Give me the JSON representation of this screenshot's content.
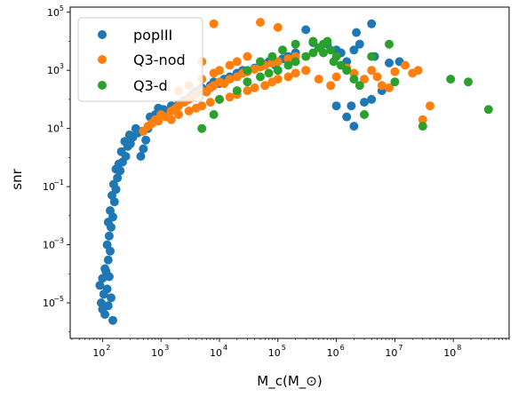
{
  "chart_data": {
    "type": "scatter",
    "title": "",
    "xlabel": "M_c(M_⊙)",
    "ylabel": "snr",
    "xscale": "log",
    "yscale": "log",
    "xlim": [
      28,
      900000000
    ],
    "ylim": [
      6e-07,
      150000
    ],
    "x_ticks": [
      {
        "value": 100,
        "base": "10",
        "exp": "2"
      },
      {
        "value": 1000,
        "base": "10",
        "exp": "3"
      },
      {
        "value": 10000,
        "base": "10",
        "exp": "4"
      },
      {
        "value": 100000,
        "base": "10",
        "exp": "5"
      },
      {
        "value": 1000000,
        "base": "10",
        "exp": "6"
      },
      {
        "value": 10000000,
        "base": "10",
        "exp": "7"
      },
      {
        "value": 100000000,
        "base": "10",
        "exp": "8"
      }
    ],
    "y_ticks": [
      {
        "value": 1e-05,
        "base": "10",
        "exp": "−5"
      },
      {
        "value": 0.001,
        "base": "10",
        "exp": "−3"
      },
      {
        "value": 0.1,
        "base": "10",
        "exp": "−1"
      },
      {
        "value": 10,
        "base": "10",
        "exp": "1"
      },
      {
        "value": 1000,
        "base": "10",
        "exp": "3"
      },
      {
        "value": 100000,
        "base": "10",
        "exp": "5"
      }
    ],
    "grid": false,
    "legend": "top-left",
    "series": [
      {
        "name": "popIII",
        "color": "#1f77b4",
        "points": [
          [
            90,
            4e-05
          ],
          [
            95,
            1e-05
          ],
          [
            100,
            6e-06
          ],
          [
            105,
            2e-05
          ],
          [
            110,
            4e-06
          ],
          [
            120,
            3e-05
          ],
          [
            125,
            8e-06
          ],
          [
            130,
            8e-05
          ],
          [
            140,
            1.5e-05
          ],
          [
            150,
            2.5e-06
          ],
          [
            115,
            0.00012
          ],
          [
            100,
            7e-05
          ],
          [
            110,
            0.00015
          ],
          [
            125,
            0.0003
          ],
          [
            135,
            0.0006
          ],
          [
            120,
            0.001
          ],
          [
            130,
            0.002
          ],
          [
            140,
            0.004
          ],
          [
            125,
            0.006
          ],
          [
            150,
            0.009
          ],
          [
            135,
            0.015
          ],
          [
            160,
            0.03
          ],
          [
            145,
            0.05
          ],
          [
            170,
            0.08
          ],
          [
            155,
            0.12
          ],
          [
            180,
            0.2
          ],
          [
            200,
            0.35
          ],
          [
            170,
            0.4
          ],
          [
            190,
            0.6
          ],
          [
            220,
            0.7
          ],
          [
            250,
            1.1
          ],
          [
            210,
            1.6
          ],
          [
            270,
            2.4
          ],
          [
            300,
            3.0
          ],
          [
            240,
            3.6
          ],
          [
            330,
            5
          ],
          [
            290,
            6
          ],
          [
            400,
            7
          ],
          [
            370,
            10
          ],
          [
            450,
            1.1
          ],
          [
            500,
            2
          ],
          [
            550,
            4
          ],
          [
            480,
            8
          ],
          [
            600,
            10
          ],
          [
            700,
            15
          ],
          [
            650,
            25
          ],
          [
            800,
            30
          ],
          [
            900,
            50
          ],
          [
            1100,
            45
          ],
          [
            1500,
            60
          ],
          [
            2000,
            70
          ],
          [
            2500,
            90
          ],
          [
            3000,
            110
          ],
          [
            3500,
            150
          ],
          [
            4000,
            190
          ],
          [
            5000,
            250
          ],
          [
            6000,
            200
          ],
          [
            7000,
            300
          ],
          [
            8000,
            400
          ],
          [
            10000,
            350
          ],
          [
            12000,
            500
          ],
          [
            15000,
            600
          ],
          [
            20000,
            800
          ],
          [
            25000,
            1000
          ],
          [
            30000,
            900
          ],
          [
            40000,
            1200
          ],
          [
            50000,
            1500
          ],
          [
            70000,
            2000
          ],
          [
            90000,
            1500
          ],
          [
            120000,
            2500
          ],
          [
            150000,
            3000
          ],
          [
            200000,
            4000
          ],
          [
            300000,
            25000
          ],
          [
            400000,
            9000
          ],
          [
            500000,
            6000
          ],
          [
            700000,
            8000
          ],
          [
            1000000,
            5000
          ],
          [
            1200000,
            4000
          ],
          [
            1500000,
            2000
          ],
          [
            2000000,
            5000
          ],
          [
            2200000,
            20000
          ],
          [
            2500000,
            8000
          ],
          [
            4000000,
            40000
          ],
          [
            4500000,
            3000
          ],
          [
            1500000,
            25
          ],
          [
            2000000,
            12
          ],
          [
            1000000,
            60
          ],
          [
            1800000,
            60
          ],
          [
            3000000,
            80
          ],
          [
            4000000,
            100
          ],
          [
            6000000,
            200
          ],
          [
            8000000,
            1800
          ],
          [
            12000000,
            2000
          ]
        ]
      },
      {
        "name": "Q3-nod",
        "color": "#ff7f0e",
        "points": [
          [
            500,
            8
          ],
          [
            600,
            12
          ],
          [
            700,
            15
          ],
          [
            800,
            20
          ],
          [
            900,
            18
          ],
          [
            1000,
            30
          ],
          [
            1200,
            25
          ],
          [
            1500,
            40
          ],
          [
            1800,
            50
          ],
          [
            2000,
            60
          ],
          [
            2500,
            80
          ],
          [
            3000,
            100
          ],
          [
            3500,
            120
          ],
          [
            4000,
            150
          ],
          [
            5000,
            200
          ],
          [
            6000,
            180
          ],
          [
            7000,
            250
          ],
          [
            8000,
            300
          ],
          [
            10000,
            400
          ],
          [
            12000,
            350
          ],
          [
            15000,
            500
          ],
          [
            20000,
            600
          ],
          [
            25000,
            800
          ],
          [
            30000,
            900
          ],
          [
            40000,
            1100
          ],
          [
            50000,
            1300
          ],
          [
            60000,
            1500
          ],
          [
            80000,
            1800
          ],
          [
            100000,
            2000
          ],
          [
            150000,
            2500
          ],
          [
            200000,
            3000
          ],
          [
            1500,
            20
          ],
          [
            2000,
            30
          ],
          [
            3000,
            40
          ],
          [
            4000,
            50
          ],
          [
            5000,
            60
          ],
          [
            7000,
            80
          ],
          [
            10000,
            100
          ],
          [
            15000,
            120
          ],
          [
            20000,
            150
          ],
          [
            30000,
            200
          ],
          [
            40000,
            250
          ],
          [
            60000,
            300
          ],
          [
            80000,
            400
          ],
          [
            100000,
            500
          ],
          [
            150000,
            600
          ],
          [
            200000,
            800
          ],
          [
            300000,
            1000
          ],
          [
            2000,
            200
          ],
          [
            3000,
            300
          ],
          [
            5000,
            500
          ],
          [
            8000,
            800
          ],
          [
            10000,
            1000
          ],
          [
            15000,
            1500
          ],
          [
            20000,
            2000
          ],
          [
            30000,
            3000
          ],
          [
            5000,
            2000
          ],
          [
            8000,
            40000
          ],
          [
            50000,
            45000
          ],
          [
            100000,
            30000
          ],
          [
            300000,
            1000
          ],
          [
            500000,
            500
          ],
          [
            800000,
            300
          ],
          [
            1000000,
            600
          ],
          [
            1500000,
            1200
          ],
          [
            2000000,
            800
          ],
          [
            3000000,
            500
          ],
          [
            4000000,
            1000
          ],
          [
            5000000,
            600
          ],
          [
            6000000,
            300
          ],
          [
            8000000,
            250
          ],
          [
            10000000,
            900
          ],
          [
            15000000,
            1500
          ],
          [
            20000000,
            800
          ],
          [
            25000000,
            1000
          ],
          [
            30000000,
            20
          ],
          [
            40000000,
            60
          ]
        ]
      },
      {
        "name": "Q3-d",
        "color": "#2ca02c",
        "points": [
          [
            5000,
            10
          ],
          [
            8000,
            30
          ],
          [
            10000,
            100
          ],
          [
            20000,
            200
          ],
          [
            30000,
            400
          ],
          [
            50000,
            600
          ],
          [
            70000,
            800
          ],
          [
            100000,
            1000
          ],
          [
            150000,
            1500
          ],
          [
            200000,
            2000
          ],
          [
            300000,
            3000
          ],
          [
            400000,
            4000
          ],
          [
            500000,
            6000
          ],
          [
            600000,
            8000
          ],
          [
            700000,
            10000
          ],
          [
            800000,
            5000
          ],
          [
            1000000,
            3000
          ],
          [
            30000,
            1000
          ],
          [
            50000,
            2000
          ],
          [
            80000,
            3000
          ],
          [
            120000,
            5000
          ],
          [
            200000,
            8000
          ],
          [
            400000,
            10000
          ],
          [
            600000,
            4000
          ],
          [
            900000,
            2000
          ],
          [
            1200000,
            1500
          ],
          [
            1500000,
            1000
          ],
          [
            2000000,
            500
          ],
          [
            2500000,
            300
          ],
          [
            3000000,
            30
          ],
          [
            4000000,
            3000
          ],
          [
            8000000,
            8000
          ],
          [
            10000000,
            400
          ],
          [
            30000000,
            12
          ],
          [
            90000000,
            500
          ],
          [
            180000000,
            400
          ],
          [
            400000000,
            45
          ]
        ]
      }
    ]
  }
}
